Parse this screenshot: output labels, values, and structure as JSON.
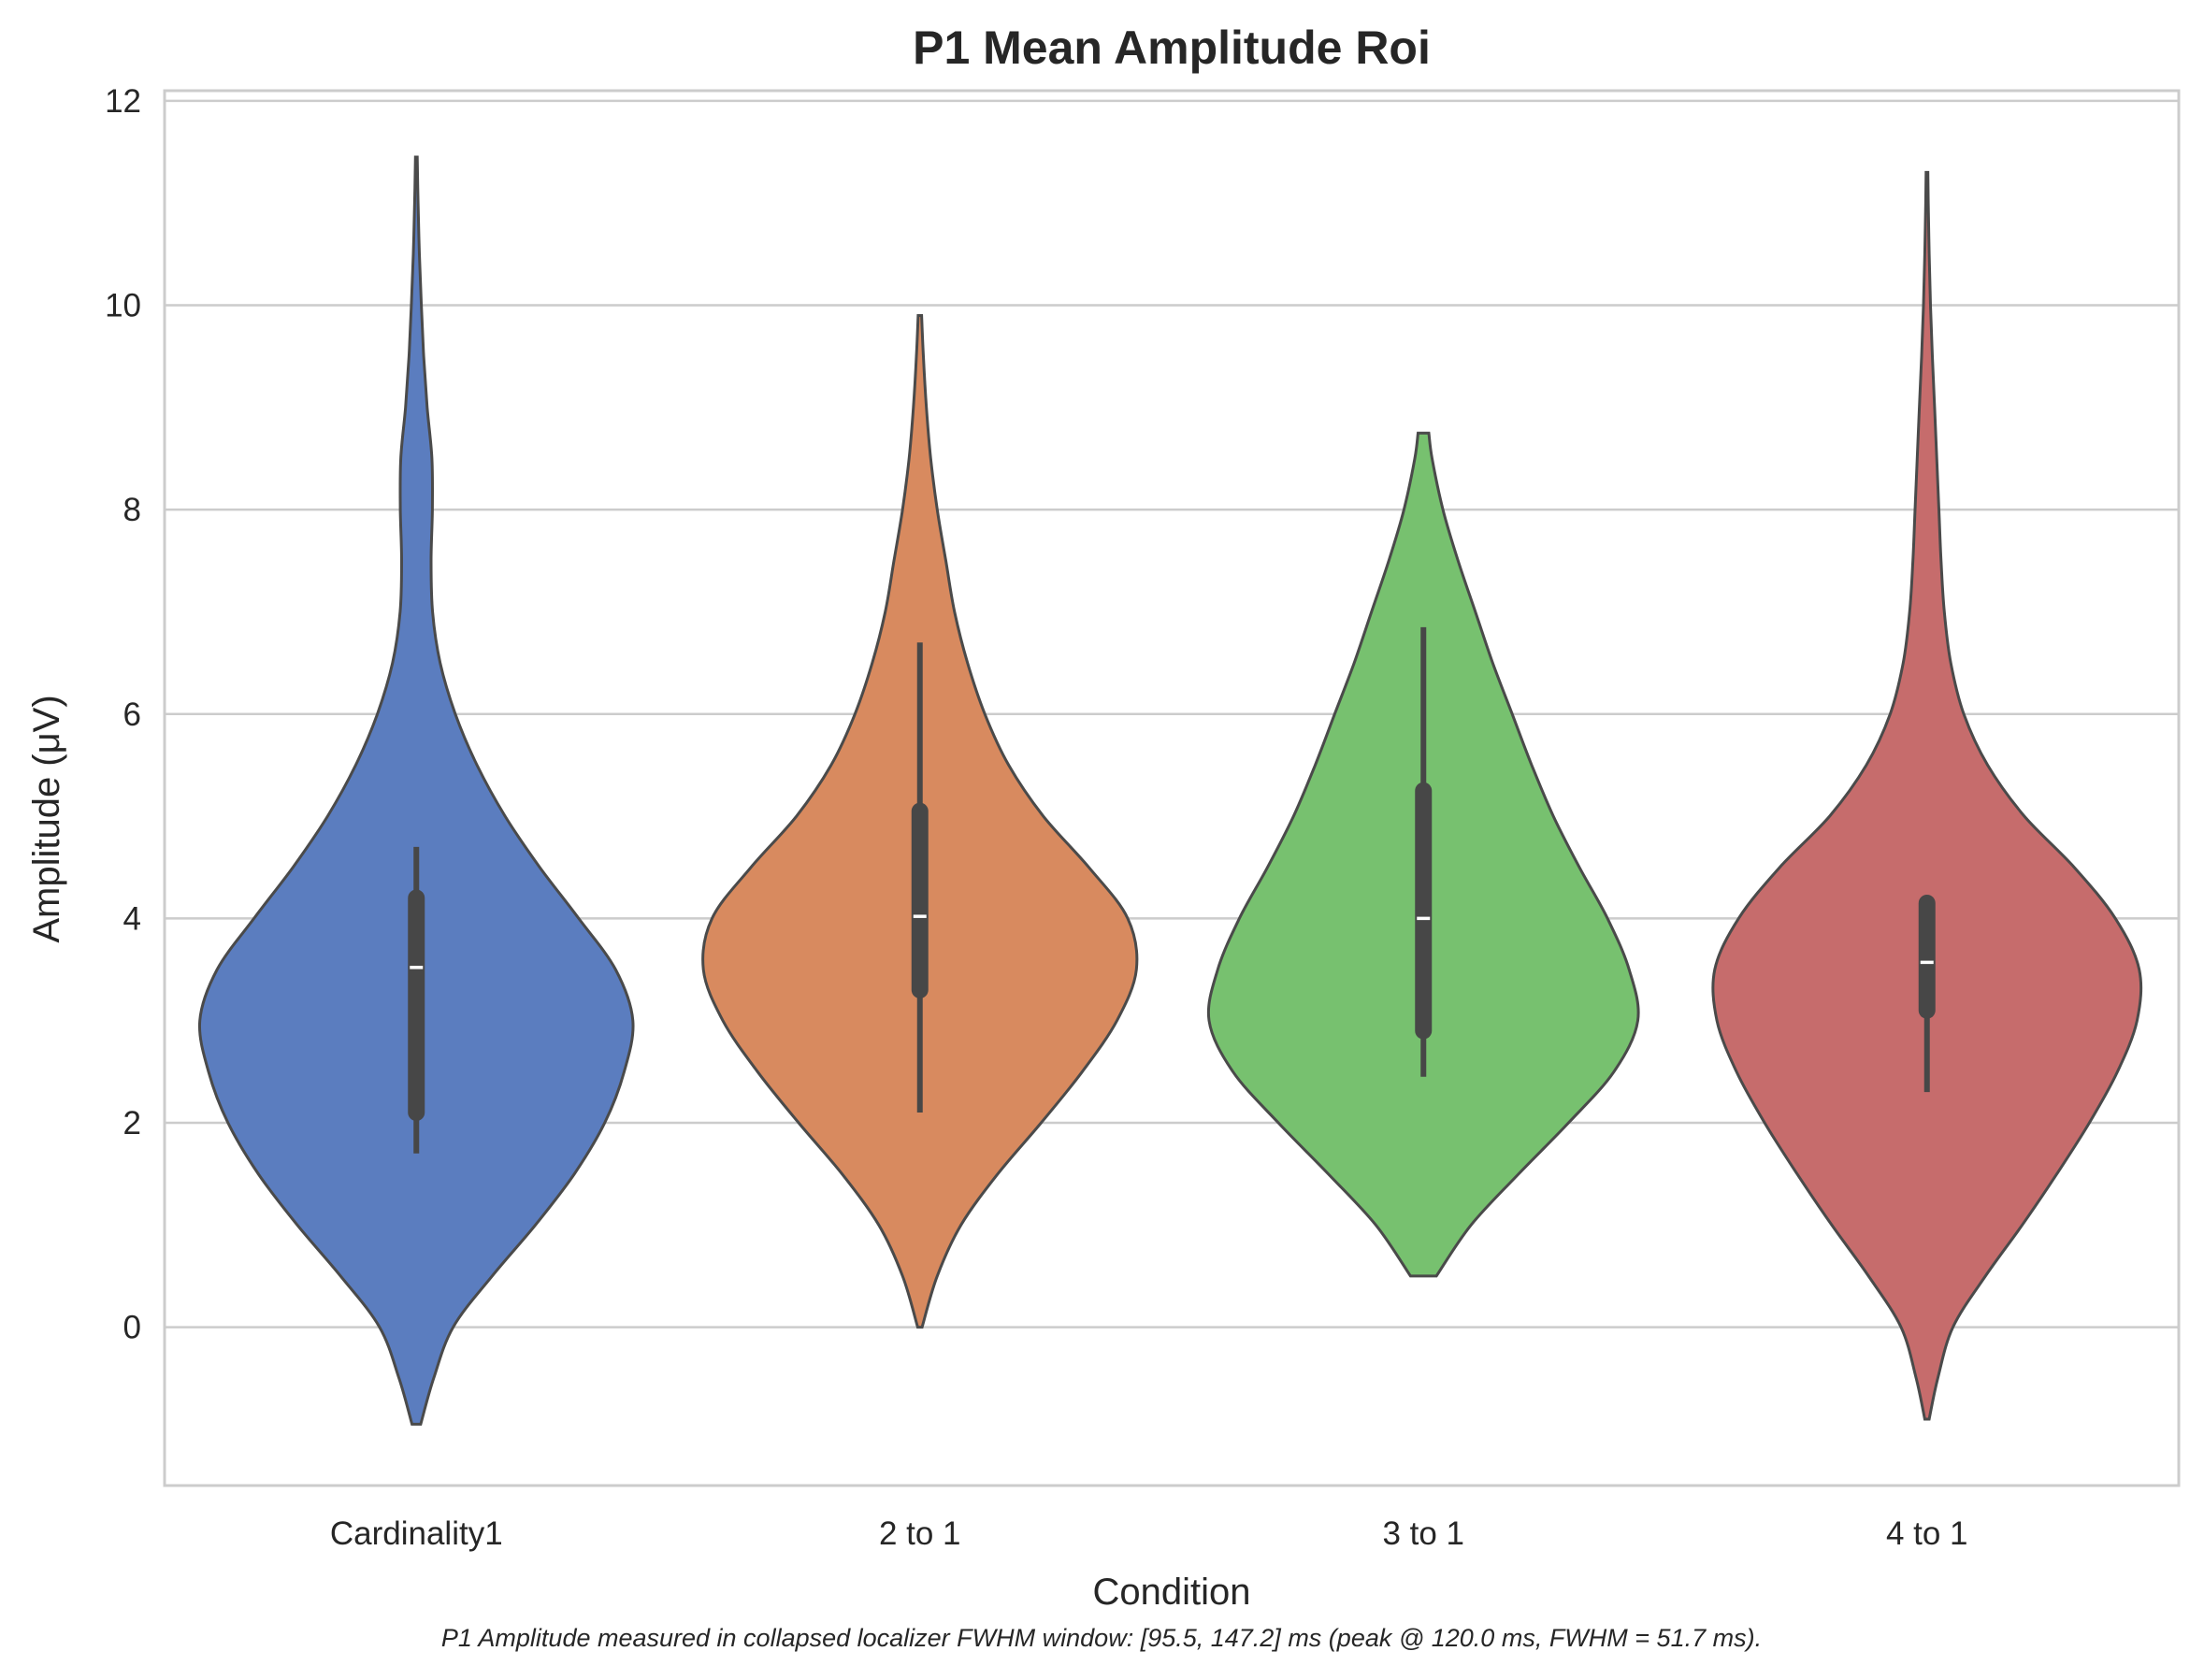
{
  "chart_data": {
    "type": "violin",
    "title": "P1 Mean Amplitude Roi",
    "xlabel": "Condition",
    "ylabel": "Amplitude (μV)",
    "caption": "P1 Amplitude measured in collapsed localizer FWHM window: [95.5, 147.2] ms (peak @ 120.0 ms, FWHM = 51.7 ms).",
    "ylim": [
      -1.55,
      12.1
    ],
    "yticks": [
      0,
      2,
      4,
      6,
      8,
      10,
      12
    ],
    "grid": "horizontal",
    "categories": [
      "Cardinality1",
      "2 to 1",
      "3 to 1",
      "4 to 1"
    ],
    "series": [
      {
        "category": "Cardinality1",
        "color": "#5b7dbf",
        "range": [
          -0.95,
          11.45
        ],
        "median": 3.52,
        "q1": 2.1,
        "q3": 4.2,
        "whisker_low": 1.7,
        "whisker_high": 4.7,
        "density": [
          [
            -0.95,
            0.02
          ],
          [
            -0.5,
            0.08
          ],
          [
            0,
            0.17
          ],
          [
            0.5,
            0.35
          ],
          [
            1,
            0.55
          ],
          [
            1.5,
            0.73
          ],
          [
            2,
            0.87
          ],
          [
            2.5,
            0.96
          ],
          [
            3,
            1.0
          ],
          [
            3.5,
            0.92
          ],
          [
            4,
            0.75
          ],
          [
            4.5,
            0.57
          ],
          [
            5,
            0.41
          ],
          [
            5.5,
            0.28
          ],
          [
            6,
            0.18
          ],
          [
            6.5,
            0.11
          ],
          [
            7,
            0.075
          ],
          [
            7.5,
            0.068
          ],
          [
            8,
            0.074
          ],
          [
            8.5,
            0.072
          ],
          [
            9,
            0.05
          ],
          [
            9.5,
            0.034
          ],
          [
            10,
            0.023
          ],
          [
            10.5,
            0.014
          ],
          [
            11,
            0.008
          ],
          [
            11.45,
            0.004
          ]
        ]
      },
      {
        "category": "2 to 1",
        "color": "#d88a5f",
        "range": [
          0,
          9.9
        ],
        "median": 4.02,
        "q1": 3.3,
        "q3": 5.05,
        "whisker_low": 2.1,
        "whisker_high": 6.7,
        "density": [
          [
            0,
            0.01
          ],
          [
            0.5,
            0.08
          ],
          [
            1,
            0.19
          ],
          [
            1.5,
            0.36
          ],
          [
            2,
            0.56
          ],
          [
            2.5,
            0.75
          ],
          [
            3,
            0.91
          ],
          [
            3.5,
            1.0
          ],
          [
            4,
            0.96
          ],
          [
            4.5,
            0.78
          ],
          [
            5,
            0.57
          ],
          [
            5.5,
            0.41
          ],
          [
            6,
            0.3
          ],
          [
            6.5,
            0.22
          ],
          [
            7,
            0.16
          ],
          [
            7.5,
            0.12
          ],
          [
            8,
            0.08
          ],
          [
            8.5,
            0.05
          ],
          [
            9,
            0.03
          ],
          [
            9.5,
            0.016
          ],
          [
            9.9,
            0.008
          ]
        ]
      },
      {
        "category": "3 to 1",
        "color": "#77c16f",
        "range": [
          0.5,
          8.75
        ],
        "median": 4.0,
        "q1": 2.9,
        "q3": 5.25,
        "whisker_low": 2.45,
        "whisker_high": 6.85,
        "density": [
          [
            0.5,
            0.06
          ],
          [
            1,
            0.22
          ],
          [
            1.5,
            0.44
          ],
          [
            2,
            0.67
          ],
          [
            2.5,
            0.88
          ],
          [
            3,
            0.99
          ],
          [
            3.5,
            0.95
          ],
          [
            4,
            0.85
          ],
          [
            4.5,
            0.72
          ],
          [
            5,
            0.6
          ],
          [
            5.5,
            0.5
          ],
          [
            6,
            0.41
          ],
          [
            6.5,
            0.32
          ],
          [
            7,
            0.24
          ],
          [
            7.5,
            0.16
          ],
          [
            8,
            0.09
          ],
          [
            8.5,
            0.04
          ],
          [
            8.75,
            0.025
          ]
        ]
      },
      {
        "category": "4 to 1",
        "color": "#c66c6c",
        "range": [
          -0.9,
          11.3
        ],
        "median": 3.57,
        "q1": 3.1,
        "q3": 4.15,
        "whisker_low": 2.3,
        "whisker_high": 4.15,
        "density": [
          [
            -0.9,
            0.01
          ],
          [
            -0.5,
            0.05
          ],
          [
            0,
            0.12
          ],
          [
            0.5,
            0.27
          ],
          [
            1,
            0.44
          ],
          [
            1.5,
            0.6
          ],
          [
            2,
            0.75
          ],
          [
            2.5,
            0.88
          ],
          [
            3,
            0.97
          ],
          [
            3.5,
            0.98
          ],
          [
            4,
            0.87
          ],
          [
            4.5,
            0.68
          ],
          [
            5,
            0.45
          ],
          [
            5.5,
            0.28
          ],
          [
            6,
            0.17
          ],
          [
            6.5,
            0.11
          ],
          [
            7,
            0.08
          ],
          [
            7.5,
            0.065
          ],
          [
            8,
            0.055
          ],
          [
            8.5,
            0.045
          ],
          [
            9,
            0.035
          ],
          [
            9.5,
            0.025
          ],
          [
            10,
            0.016
          ],
          [
            10.5,
            0.01
          ],
          [
            11,
            0.006
          ],
          [
            11.3,
            0.004
          ]
        ]
      }
    ]
  }
}
